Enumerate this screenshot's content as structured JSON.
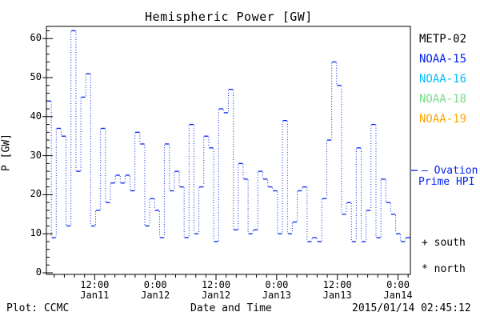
{
  "title": "Hemispheric Power [GW]",
  "footer": {
    "plot_credit": "Plot: CCMC",
    "xlabel": "Date and Time",
    "timestamp": "2015/01/14 02:45:12"
  },
  "legend": {
    "satellites": [
      {
        "label": "METP-02",
        "color": "#000000"
      },
      {
        "label": "NOAA-15",
        "color": "#0022ee"
      },
      {
        "label": "NOAA-16",
        "color": "#00bfff"
      },
      {
        "label": "NOAA-18",
        "color": "#77dd88"
      },
      {
        "label": "NOAA-19",
        "color": "#ffa500"
      }
    ],
    "model_line1": "– Ovation",
    "model_line2": "Prime HPI",
    "model_color": "#0022ee",
    "south_marker": "+ south",
    "north_marker": "* north"
  },
  "chart_data": {
    "type": "line",
    "subtype": "step-histogram, solid horizontal segments with dotted vertical connectors",
    "title": "Hemispheric Power [GW]",
    "xlabel": "Date and Time",
    "ylabel": "P [GW]",
    "ylim": [
      0,
      63
    ],
    "y_major_ticks": [
      0,
      10,
      20,
      30,
      40,
      50,
      60
    ],
    "y_minor_step": 2,
    "x_range_hours": {
      "start": 2.45,
      "span": 72,
      "start_label": "2015/01/11 ~02:45",
      "end_label": "2015/01/14 02:45"
    },
    "x_major_ticks": [
      {
        "hour": 12,
        "line1": "12:00",
        "line2": "Jan11"
      },
      {
        "hour": 24,
        "line1": "0:00",
        "line2": "Jan12"
      },
      {
        "hour": 36,
        "line1": "12:00",
        "line2": "Jan12"
      },
      {
        "hour": 48,
        "line1": "0:00",
        "line2": "Jan13"
      },
      {
        "hour": 60,
        "line1": "12:00",
        "line2": "Jan13"
      },
      {
        "hour": 72,
        "line1": "0:00",
        "line2": "Jan14"
      }
    ],
    "x_minor_step_hours": 2,
    "grid": false,
    "legend_position": "right",
    "series": [
      {
        "name": "NOAA-15 Ovation Prime HPI",
        "color": "#0022ee",
        "units": "GW",
        "values": [
          44,
          9,
          37,
          35,
          12,
          62,
          26,
          45,
          51,
          12,
          16,
          37,
          18,
          23,
          25,
          23,
          25,
          21,
          36,
          33,
          12,
          19,
          16,
          9,
          33,
          21,
          26,
          22,
          9,
          38,
          10,
          22,
          35,
          32,
          8,
          42,
          41,
          47,
          11,
          28,
          24,
          10,
          11,
          26,
          24,
          22,
          21,
          10,
          39,
          10,
          13,
          21,
          22,
          8,
          9,
          8,
          19,
          34,
          54,
          48,
          15,
          18,
          8,
          32,
          8,
          16,
          38,
          9,
          24,
          18,
          15,
          10,
          8,
          9
        ]
      }
    ]
  }
}
